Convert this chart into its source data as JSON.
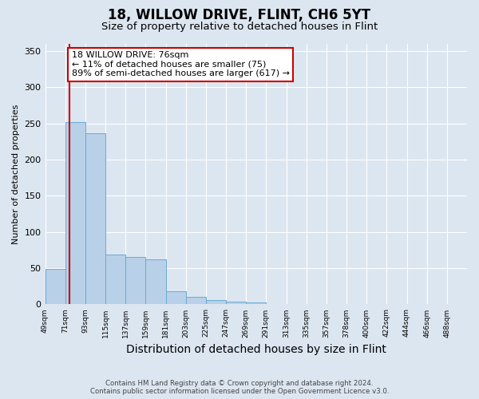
{
  "title": "18, WILLOW DRIVE, FLINT, CH6 5YT",
  "subtitle": "Size of property relative to detached houses in Flint",
  "xlabel": "Distribution of detached houses by size in Flint",
  "ylabel": "Number of detached properties",
  "bar_labels": [
    "49sqm",
    "71sqm",
    "93sqm",
    "115sqm",
    "137sqm",
    "159sqm",
    "181sqm",
    "203sqm",
    "225sqm",
    "247sqm",
    "269sqm",
    "291sqm",
    "313sqm",
    "335sqm",
    "357sqm",
    "378sqm",
    "400sqm",
    "422sqm",
    "444sqm",
    "466sqm",
    "488sqm"
  ],
  "bar_values": [
    49,
    252,
    236,
    69,
    65,
    62,
    18,
    10,
    6,
    4,
    3,
    0,
    0,
    0,
    0,
    0,
    0,
    0,
    0,
    0,
    0
  ],
  "bar_color": "#b8d0e8",
  "bar_edge_color": "#6aaad4",
  "red_line_x": 76,
  "annotation_text": "18 WILLOW DRIVE: 76sqm\n← 11% of detached houses are smaller (75)\n89% of semi-detached houses are larger (617) →",
  "annotation_box_color": "#ffffff",
  "annotation_box_edge": "#cc0000",
  "red_line_color": "#cc0000",
  "ylim": [
    0,
    360
  ],
  "yticks": [
    0,
    50,
    100,
    150,
    200,
    250,
    300,
    350
  ],
  "background_color": "#dce6f0",
  "plot_bg_color": "#dce6f0",
  "footer_line1": "Contains HM Land Registry data © Crown copyright and database right 2024.",
  "footer_line2": "Contains public sector information licensed under the Open Government Licence v3.0.",
  "title_fontsize": 12,
  "subtitle_fontsize": 9.5,
  "xlabel_fontsize": 10,
  "ylabel_fontsize": 8,
  "annotation_fontsize": 8,
  "bin_width": 22,
  "n_bins": 21
}
